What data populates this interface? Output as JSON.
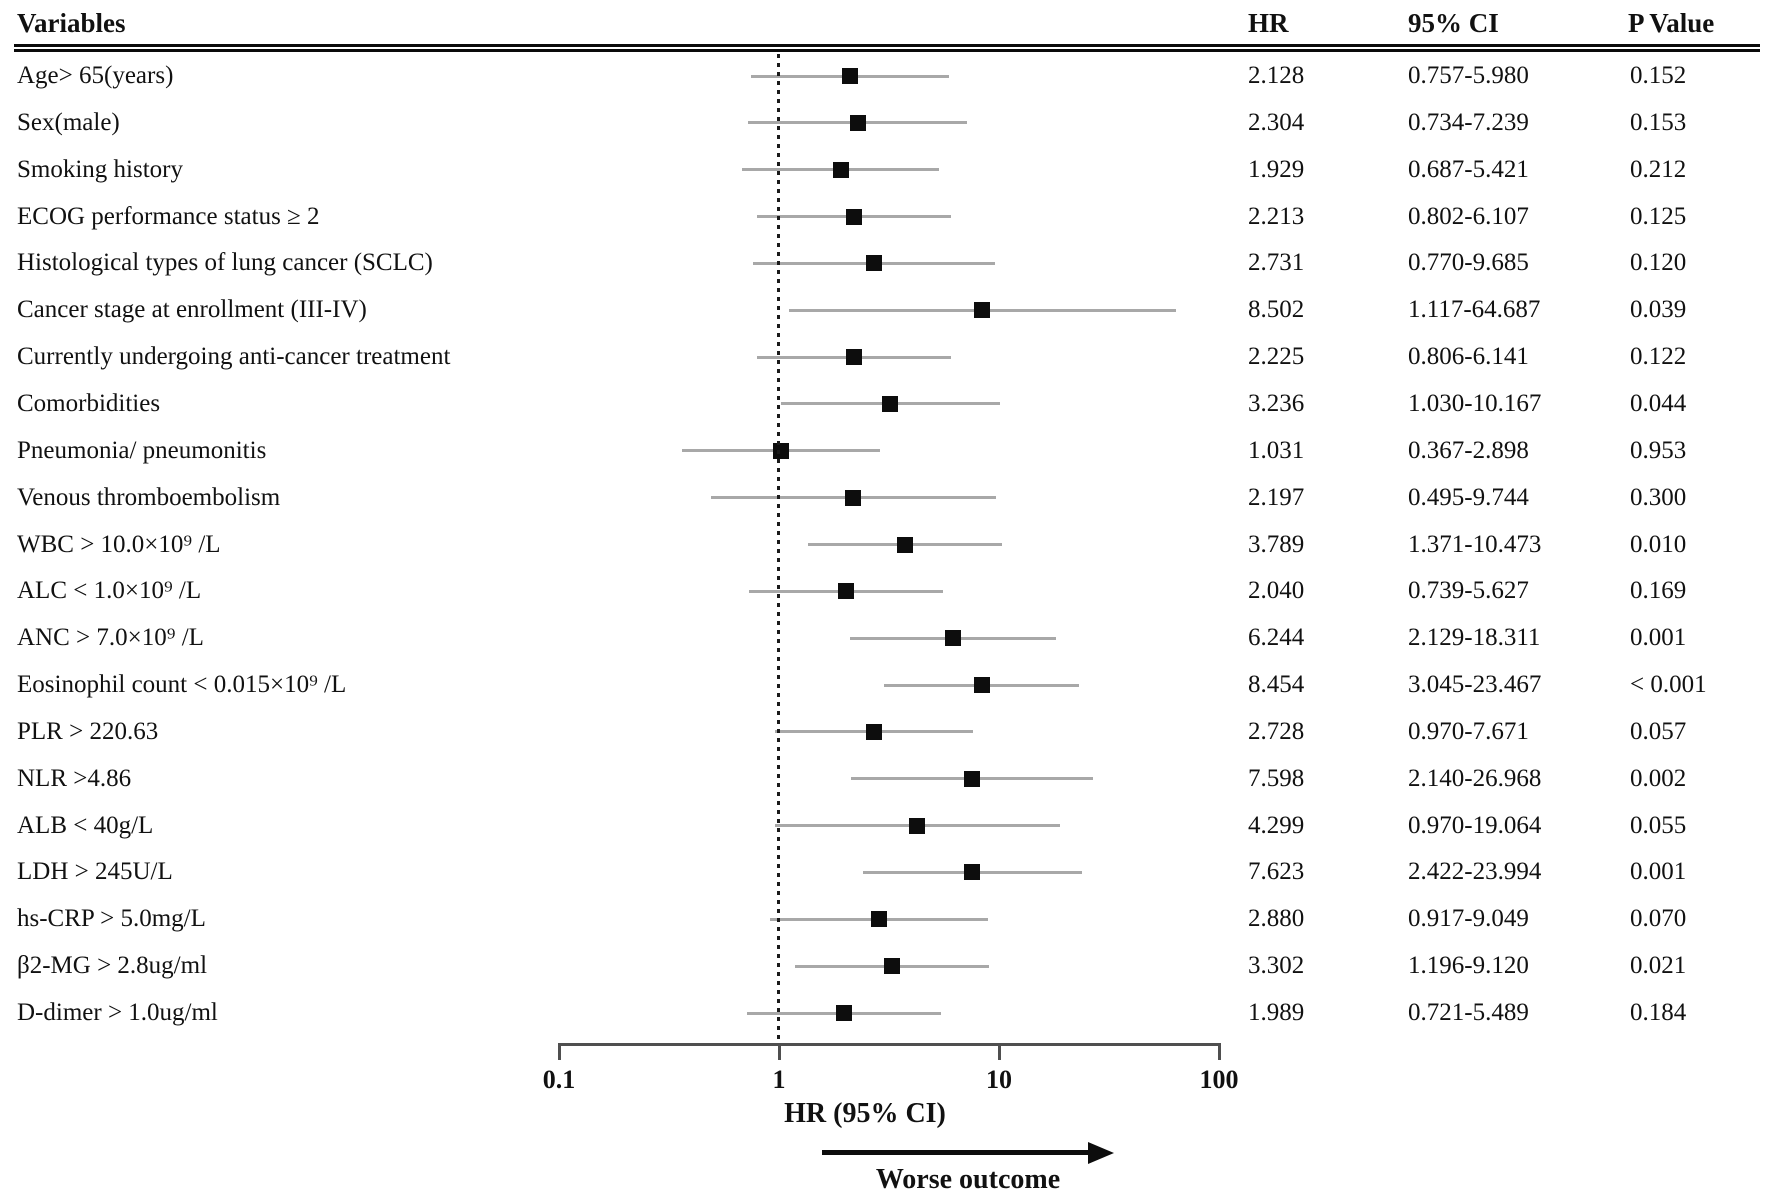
{
  "chart_data": {
    "type": "forest",
    "columns": {
      "variables": "Variables",
      "hr": "HR",
      "ci": "95% CI",
      "p": "P Value"
    },
    "axis": {
      "label": "HR (95% CI)",
      "scale": "log",
      "range": [
        0.1,
        100
      ],
      "ticks": [
        0.1,
        1,
        10,
        100
      ],
      "tick_labels": [
        "0.1",
        "1",
        "10",
        "100"
      ],
      "reference_line": 1
    },
    "arrow_label": "Worse outcome",
    "rows": [
      {
        "label": "Age> 65(years)",
        "hr": 2.128,
        "lo": 0.757,
        "hi": 5.98,
        "hr_text": "2.128",
        "ci_text": "0.757-5.980",
        "p_text": "0.152"
      },
      {
        "label": "Sex(male)",
        "hr": 2.304,
        "lo": 0.734,
        "hi": 7.239,
        "hr_text": "2.304",
        "ci_text": "0.734-7.239",
        "p_text": "0.153"
      },
      {
        "label": "Smoking history",
        "hr": 1.929,
        "lo": 0.687,
        "hi": 5.421,
        "hr_text": "1.929",
        "ci_text": "0.687-5.421",
        "p_text": "0.212"
      },
      {
        "label": "ECOG performance status ≥ 2",
        "hr": 2.213,
        "lo": 0.802,
        "hi": 6.107,
        "hr_text": "2.213",
        "ci_text": "0.802-6.107",
        "p_text": "0.125"
      },
      {
        "label": "Histological types of lung cancer (SCLC)",
        "hr": 2.731,
        "lo": 0.77,
        "hi": 9.685,
        "hr_text": "2.731",
        "ci_text": "0.770-9.685",
        "p_text": "0.120"
      },
      {
        "label": "Cancer stage at enrollment (III-IV)",
        "hr": 8.502,
        "lo": 1.117,
        "hi": 64.687,
        "hr_text": "8.502",
        "ci_text": "1.117-64.687",
        "p_text": "0.039"
      },
      {
        "label": "Currently undergoing anti-cancer treatment",
        "hr": 2.225,
        "lo": 0.806,
        "hi": 6.141,
        "hr_text": "2.225",
        "ci_text": "0.806-6.141",
        "p_text": "0.122"
      },
      {
        "label": "Comorbidities",
        "hr": 3.236,
        "lo": 1.03,
        "hi": 10.167,
        "hr_text": "3.236",
        "ci_text": "1.030-10.167",
        "p_text": "0.044"
      },
      {
        "label": "Pneumonia/ pneumonitis",
        "hr": 1.031,
        "lo": 0.367,
        "hi": 2.898,
        "hr_text": "1.031",
        "ci_text": "0.367-2.898",
        "p_text": "0.953"
      },
      {
        "label": "Venous thromboembolism",
        "hr": 2.197,
        "lo": 0.495,
        "hi": 9.744,
        "hr_text": "2.197",
        "ci_text": "0.495-9.744",
        "p_text": "0.300"
      },
      {
        "label": "WBC > 10.0×10⁹ /L",
        "hr": 3.789,
        "lo": 1.371,
        "hi": 10.473,
        "hr_text": "3.789",
        "ci_text": "1.371-10.473",
        "p_text": "0.010"
      },
      {
        "label": "ALC < 1.0×10⁹ /L",
        "hr": 2.04,
        "lo": 0.739,
        "hi": 5.627,
        "hr_text": "2.040",
        "ci_text": "0.739-5.627",
        "p_text": "0.169"
      },
      {
        "label": "ANC > 7.0×10⁹ /L",
        "hr": 6.244,
        "lo": 2.129,
        "hi": 18.311,
        "hr_text": "6.244",
        "ci_text": "2.129-18.311",
        "p_text": "0.001"
      },
      {
        "label": "Eosinophil count < 0.015×10⁹ /L",
        "hr": 8.454,
        "lo": 3.045,
        "hi": 23.467,
        "hr_text": "8.454",
        "ci_text": "3.045-23.467",
        "p_text": "< 0.001"
      },
      {
        "label": "PLR > 220.63",
        "hr": 2.728,
        "lo": 0.97,
        "hi": 7.671,
        "hr_text": "2.728",
        "ci_text": "0.970-7.671",
        "p_text": "0.057"
      },
      {
        "label": "NLR >4.86",
        "hr": 7.598,
        "lo": 2.14,
        "hi": 26.968,
        "hr_text": "7.598",
        "ci_text": "2.140-26.968",
        "p_text": "0.002"
      },
      {
        "label": "ALB < 40g/L",
        "hr": 4.299,
        "lo": 0.97,
        "hi": 19.064,
        "hr_text": "4.299",
        "ci_text": "0.970-19.064",
        "p_text": "0.055"
      },
      {
        "label": "LDH > 245U/L",
        "hr": 7.623,
        "lo": 2.422,
        "hi": 23.994,
        "hr_text": "7.623",
        "ci_text": "2.422-23.994",
        "p_text": "0.001"
      },
      {
        "label": "hs-CRP > 5.0mg/L",
        "hr": 2.88,
        "lo": 0.917,
        "hi": 9.049,
        "hr_text": "2.880",
        "ci_text": "0.917-9.049",
        "p_text": "0.070"
      },
      {
        "label": "β2-MG > 2.8ug/ml",
        "hr": 3.302,
        "lo": 1.196,
        "hi": 9.12,
        "hr_text": "3.302",
        "ci_text": "1.196-9.120",
        "p_text": "0.021"
      },
      {
        "label": "D-dimer > 1.0ug/ml",
        "hr": 1.989,
        "lo": 0.721,
        "hi": 5.489,
        "hr_text": "1.989",
        "ci_text": "0.721-5.489",
        "p_text": "0.184"
      }
    ]
  },
  "colors": {
    "background": "#ffffff",
    "text": "#111111",
    "marker": "#0d0d0d",
    "ci_line": "#a8a8a8",
    "axis": "#4f4f4f",
    "header_rule": "#0a0a0a"
  }
}
